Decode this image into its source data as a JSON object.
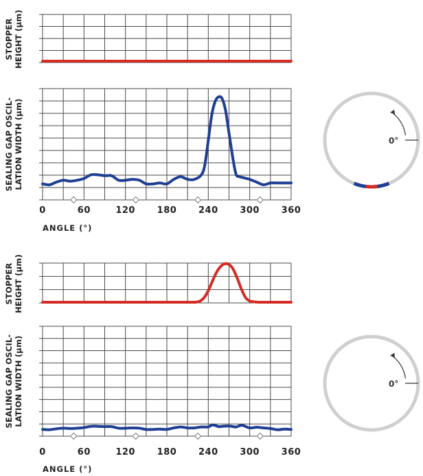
{
  "colors": {
    "stopper": "#d42b24",
    "gap": "#1f3f93",
    "grid": "#4a4a4a",
    "ring": "#cfcfcf",
    "marker": "#8a8a8a"
  },
  "chart_data": [
    {
      "type": "line",
      "ylabel_lines": [
        "STOPPER",
        "HEIGHT (µm)"
      ],
      "xlim": [
        0,
        360
      ],
      "ylim": [
        0,
        1
      ],
      "grid": true,
      "series": [
        {
          "x": [
            0,
            360
          ],
          "y": [
            0,
            0
          ]
        }
      ]
    },
    {
      "type": "line",
      "ylabel_lines": [
        "SEALING GAP OSCIL-",
        "LATION WIDTH (µm)"
      ],
      "xlabel": "ANGLE (°)",
      "xticks": [
        "0",
        "60",
        "120",
        "180",
        "240",
        "300",
        "360"
      ],
      "xlim": [
        0,
        360
      ],
      "ylim": [
        0,
        1
      ],
      "grid": true,
      "markers_x": [
        45,
        135,
        225,
        315
      ],
      "series": [
        {
          "x": [
            0,
            10,
            20,
            30,
            40,
            50,
            60,
            70,
            80,
            90,
            100,
            110,
            120,
            130,
            140,
            150,
            160,
            170,
            180,
            190,
            200,
            210,
            220,
            230,
            235,
            240,
            245,
            250,
            255,
            260,
            265,
            270,
            275,
            280,
            285,
            290,
            295,
            300,
            310,
            320,
            330,
            340,
            350,
            360
          ],
          "y": [
            0.04,
            0.03,
            0.06,
            0.08,
            0.07,
            0.08,
            0.1,
            0.14,
            0.14,
            0.13,
            0.13,
            0.08,
            0.08,
            0.09,
            0.08,
            0.04,
            0.04,
            0.05,
            0.04,
            0.09,
            0.12,
            0.09,
            0.09,
            0.14,
            0.25,
            0.52,
            0.8,
            0.95,
            1.0,
            0.98,
            0.85,
            0.6,
            0.35,
            0.15,
            0.12,
            0.11,
            0.1,
            0.09,
            0.06,
            0.03,
            0.05,
            0.05,
            0.05,
            0.05
          ]
        }
      ]
    },
    {
      "type": "line",
      "ylabel_lines": [
        "STOPPER",
        "HEIGHT (µm)"
      ],
      "xlim": [
        0,
        360
      ],
      "ylim": [
        0,
        1
      ],
      "grid": true,
      "series": [
        {
          "x": [
            0,
            200,
            220,
            228,
            234,
            240,
            246,
            252,
            258,
            264,
            270,
            276,
            282,
            288,
            294,
            300,
            306,
            312,
            320,
            360
          ],
          "y": [
            0,
            0,
            0,
            0.03,
            0.12,
            0.3,
            0.55,
            0.78,
            0.93,
            1.0,
            0.98,
            0.86,
            0.62,
            0.34,
            0.12,
            0.03,
            0.01,
            0,
            0,
            0
          ]
        }
      ]
    },
    {
      "type": "line",
      "ylabel_lines": [
        "SEALING GAP OSCIL-",
        "LATION WIDTH (µm)"
      ],
      "xlabel": "ANGLE (°)",
      "xticks": [
        "0",
        "60",
        "120",
        "180",
        "240",
        "300",
        "360"
      ],
      "xlim": [
        0,
        360
      ],
      "ylim": [
        0,
        1
      ],
      "grid": true,
      "markers_x": [
        45,
        135,
        225,
        315
      ],
      "series": [
        {
          "x": [
            0,
            10,
            20,
            30,
            40,
            50,
            60,
            70,
            80,
            90,
            100,
            110,
            120,
            130,
            140,
            150,
            160,
            170,
            180,
            190,
            200,
            210,
            220,
            230,
            240,
            245,
            250,
            255,
            260,
            270,
            280,
            285,
            290,
            300,
            310,
            320,
            330,
            340,
            350,
            360
          ],
          "y": [
            0.04,
            0.03,
            0.06,
            0.08,
            0.07,
            0.08,
            0.1,
            0.14,
            0.14,
            0.13,
            0.13,
            0.08,
            0.08,
            0.09,
            0.08,
            0.04,
            0.04,
            0.05,
            0.04,
            0.09,
            0.12,
            0.09,
            0.09,
            0.12,
            0.12,
            0.18,
            0.17,
            0.13,
            0.14,
            0.15,
            0.12,
            0.16,
            0.17,
            0.09,
            0.11,
            0.09,
            0.07,
            0.03,
            0.05,
            0.04
          ]
        }
      ]
    }
  ],
  "diagrams": [
    {
      "angle_label": "0°",
      "arc_segments": [
        {
          "color": "gap"
        },
        {
          "color": "stopper"
        },
        {
          "color": "gap"
        }
      ]
    },
    {
      "angle_label": "0°",
      "arc_segments": []
    }
  ]
}
